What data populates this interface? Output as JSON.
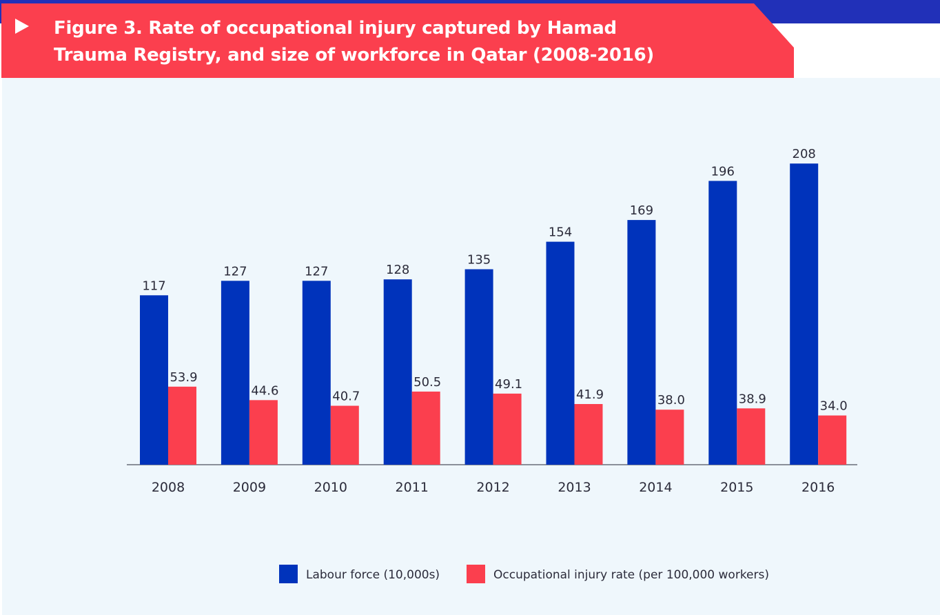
{
  "title": "Figure 3. Rate of occupational injury captured by Hamad Trauma Registry, and size of workforce in Qatar (2008-2016)",
  "colors": {
    "banner": "#fb3f4e",
    "strip": "#2130b8",
    "labour": "#0033bb",
    "injury": "#fb3f4e",
    "background": "#eff7fc"
  },
  "chart_data": {
    "type": "bar",
    "title": "Figure 3. Rate of occupational injury captured by Hamad Trauma Registry, and size of workforce in Qatar (2008-2016)",
    "categories": [
      "2008",
      "2009",
      "2010",
      "2011",
      "2012",
      "2013",
      "2014",
      "2015",
      "2016"
    ],
    "series": [
      {
        "name": "Labour force (10,000s)",
        "values": [
          117,
          127,
          127,
          128,
          135,
          154,
          169,
          196,
          208
        ],
        "labels": [
          "117",
          "127",
          "127",
          "128",
          "135",
          "154",
          "169",
          "196",
          "208"
        ],
        "color": "#0033bb"
      },
      {
        "name": "Occupational injury rate (per 100,000 workers)",
        "values": [
          53.9,
          44.6,
          40.7,
          50.5,
          49.1,
          41.9,
          38.0,
          38.9,
          34.0
        ],
        "labels": [
          "53.9",
          "44.6",
          "40.7",
          "50.5",
          "49.1",
          "41.9",
          "38.0",
          "38.9",
          "34.0"
        ],
        "color": "#fb3f4e"
      }
    ],
    "legend_position": "bottom",
    "grid": false,
    "xlabel": "",
    "ylabel": ""
  }
}
